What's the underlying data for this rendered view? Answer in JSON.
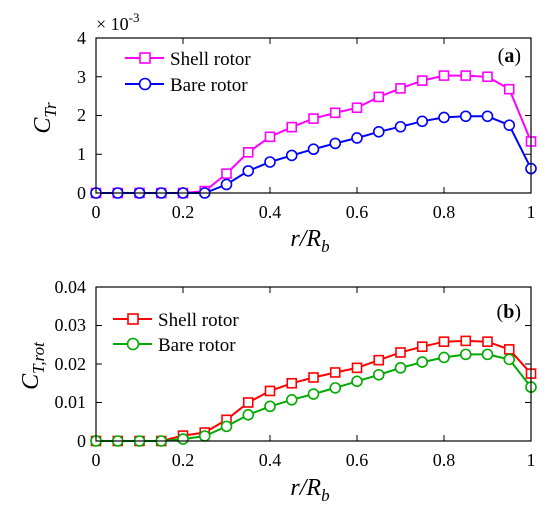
{
  "chart_data": [
    {
      "type": "line",
      "panel": "a",
      "x": [
        0,
        0.05,
        0.1,
        0.15,
        0.2,
        0.25,
        0.3,
        0.35,
        0.4,
        0.45,
        0.5,
        0.55,
        0.6,
        0.65,
        0.7,
        0.75,
        0.8,
        0.85,
        0.9,
        0.95,
        1.0
      ],
      "series": [
        {
          "name": "Shell rotor",
          "color": "#ff00ff",
          "marker": "square",
          "values": [
            0.0,
            0.0,
            0.0,
            0.0,
            0.0,
            5e-05,
            0.0005,
            0.00105,
            0.00145,
            0.0017,
            0.00192,
            0.00207,
            0.0022,
            0.00248,
            0.0027,
            0.0029,
            0.00303,
            0.00303,
            0.003,
            0.00268,
            0.00133
          ]
        },
        {
          "name": "Bare rotor",
          "color": "#0000ff",
          "marker": "circle",
          "values": [
            0.0,
            0.0,
            0.0,
            0.0,
            0.0,
            0.0,
            0.00022,
            0.00057,
            0.0008,
            0.00097,
            0.00113,
            0.00128,
            0.00142,
            0.00158,
            0.00171,
            0.00185,
            0.00195,
            0.00198,
            0.00198,
            0.00175,
            0.00063
          ]
        }
      ],
      "xlim": [
        0,
        1
      ],
      "ylim": [
        0,
        0.004
      ],
      "xticks": [
        "0",
        "0.2",
        "0.4",
        "0.6",
        "0.8",
        "1"
      ],
      "yticks": [
        "0",
        "1",
        "2",
        "3",
        "4"
      ],
      "yscale_exponent": {
        "base": "× 10",
        "power": "-3"
      },
      "ylabel": {
        "main": "C",
        "sub": "Tr"
      },
      "xlabel": {
        "main": "r/R",
        "sub": "b"
      },
      "panel_label": {
        "open": "(",
        "letter": "a",
        "close": ")"
      },
      "legend_position": "top-left"
    },
    {
      "type": "line",
      "panel": "b",
      "x": [
        0,
        0.05,
        0.1,
        0.15,
        0.2,
        0.25,
        0.3,
        0.35,
        0.4,
        0.45,
        0.5,
        0.55,
        0.6,
        0.65,
        0.7,
        0.75,
        0.8,
        0.85,
        0.9,
        0.95,
        1.0
      ],
      "series": [
        {
          "name": "Shell rotor",
          "color": "#ff0000",
          "marker": "square",
          "values": [
            0.0,
            0.0,
            0.0,
            0.0,
            0.0014,
            0.0022,
            0.0055,
            0.01,
            0.013,
            0.015,
            0.0165,
            0.0178,
            0.019,
            0.021,
            0.023,
            0.0245,
            0.0258,
            0.026,
            0.0258,
            0.0238,
            0.0175
          ]
        },
        {
          "name": "Bare rotor",
          "color": "#00aa00",
          "marker": "circle",
          "values": [
            0.0,
            0.0,
            0.0,
            0.0,
            0.0005,
            0.0013,
            0.0038,
            0.0068,
            0.009,
            0.0107,
            0.0122,
            0.0138,
            0.0155,
            0.0172,
            0.019,
            0.0205,
            0.0217,
            0.0225,
            0.0225,
            0.0212,
            0.014
          ]
        }
      ],
      "xlim": [
        0,
        1
      ],
      "ylim": [
        0,
        0.04
      ],
      "xticks": [
        "0",
        "0.2",
        "0.4",
        "0.6",
        "0.8",
        "1"
      ],
      "yticks": [
        "0",
        "0.01",
        "0.02",
        "0.03",
        "0.04"
      ],
      "ylabel": {
        "main": "C",
        "sub": "T,rot"
      },
      "xlabel": {
        "main": "r/R",
        "sub": "b"
      },
      "panel_label": {
        "open": "(",
        "letter": "b",
        "close": ")"
      },
      "legend_position": "top-left"
    }
  ]
}
